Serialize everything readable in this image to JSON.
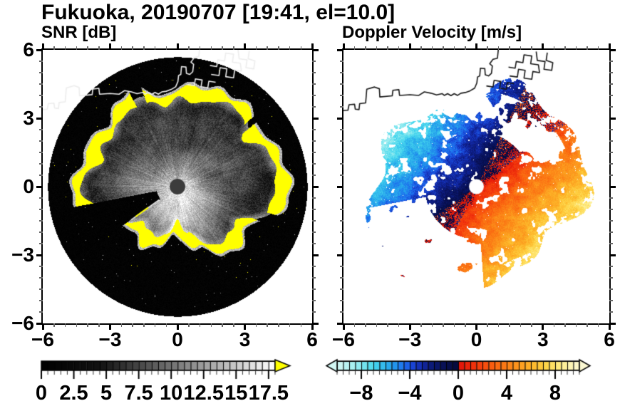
{
  "figure": {
    "title": "Fukuoka, 20190707 [19:41, el=10.0]",
    "station": "Fukuoka",
    "date": "20190707",
    "time": "19:41",
    "elevation": "10.0",
    "background": "#ffffff"
  },
  "panels": [
    {
      "id": "snr",
      "title": "SNR [dB]",
      "y_tick_labels": [
        "6",
        "3",
        "0",
        "−3",
        "−6"
      ],
      "x_tick_labels": [
        "−6",
        "−3",
        "0",
        "3",
        "6"
      ],
      "colorbar_labels": [
        "0",
        "2.5",
        "5",
        "7.5",
        "10",
        "12.5",
        "15",
        "17.5"
      ]
    },
    {
      "id": "velocity",
      "title": "Doppler Velocity [m/s]",
      "x_tick_labels": [
        "−6",
        "−3",
        "0",
        "3",
        "6"
      ],
      "colorbar_labels": [
        "−8",
        "−4",
        "0",
        "4",
        "8"
      ]
    }
  ],
  "chart_data": [
    {
      "type": "heatmap",
      "panel": "left",
      "title": "SNR [dB]",
      "x_range": [
        -6,
        6
      ],
      "y_range": [
        -6,
        6
      ],
      "x_major_ticks": [
        -6,
        -3,
        0,
        3,
        6
      ],
      "y_major_ticks": [
        6,
        3,
        0,
        -3,
        -6
      ],
      "minor_tick_step": 0.5,
      "grid": false,
      "colorbar": {
        "orientation": "horizontal",
        "range": [
          0,
          18
        ],
        "segment_step": 0.5,
        "major_ticks": [
          0,
          2.5,
          5,
          7.5,
          10,
          12.5,
          15,
          17.5
        ],
        "minor_tick_step": 0.5,
        "colormap": {
          "type": "grayscale",
          "black_below": 4.5,
          "white_at": 18
        },
        "over_range_color": "#ffff00",
        "over_range_arrow": "right"
      },
      "features": {
        "scan_disk_radius": 5.78,
        "radar_center_dot": {
          "x": 0,
          "y": 0,
          "radius": 0.22,
          "color": "#3c3c3c"
        },
        "blocked_wedge_rad": [
          -2.95,
          -2.53
        ],
        "blocked_wedge_toward": "southwest",
        "echo_boundary_radius_by_dir": {
          "E": 4.55,
          "NE": 4.35,
          "N": 4.2,
          "NW": 4.05,
          "W": 4.25,
          "SW": 2.6,
          "S": 2.15,
          "SE": 3.3
        },
        "yellow_ring": "over-range SNR (>18 dB) blobs along the echo boundary",
        "description": "PPI radar scan: bright white high-SNR core with radial streaks around the radar, gray speckled echo region, irregular yellow over-range ring at the echo boundary, near-black low-SNR ring out to the scan edge, black blocked wedge toward the southwest, dark dot at the radar site, white coastline overlay along the top"
      },
      "coastline_overlay_color": "#ededed"
    },
    {
      "type": "heatmap",
      "panel": "right",
      "title": "Doppler Velocity [m/s]",
      "x_range": [
        -6,
        6
      ],
      "y_range": [
        -6,
        6
      ],
      "x_major_ticks": [
        -6,
        -3,
        0,
        3,
        6
      ],
      "y_major_ticks": [
        6,
        3,
        0,
        -3,
        -6
      ],
      "minor_tick_step": 0.5,
      "grid": false,
      "colorbar": {
        "orientation": "horizontal",
        "range": [
          -10,
          10
        ],
        "segment_step": 0.5,
        "major_ticks": [
          -8,
          -4,
          0,
          4,
          8
        ],
        "minor_tick_step": 0.5,
        "under_range_arrow": "left",
        "over_range_arrow": "right"
      },
      "colormap_stops": [
        [
          -10,
          [
            210,
            248,
            244
          ]
        ],
        [
          -8.5,
          [
            160,
            238,
            240
          ]
        ],
        [
          -7,
          [
            70,
            215,
            238
          ]
        ],
        [
          -5.5,
          [
            35,
            160,
            235
          ]
        ],
        [
          -4.5,
          [
            30,
            110,
            238
          ]
        ],
        [
          -3.8,
          [
            25,
            70,
            215
          ]
        ],
        [
          -3,
          [
            18,
            40,
            165
          ]
        ],
        [
          -2.2,
          [
            12,
            26,
            118
          ]
        ],
        [
          -1.2,
          [
            8,
            16,
            84
          ]
        ],
        [
          -0.02,
          [
            5,
            10,
            58
          ]
        ],
        [
          0.02,
          [
            225,
            18,
            10
          ]
        ],
        [
          1.5,
          [
            243,
            55,
            12
          ]
        ],
        [
          3,
          [
            250,
            100,
            16
          ]
        ],
        [
          4.5,
          [
            252,
            140,
            25
          ]
        ],
        [
          6,
          [
            253,
            180,
            40
          ]
        ],
        [
          7.2,
          [
            254,
            212,
            70
          ]
        ],
        [
          8.2,
          [
            254,
            232,
            120
          ]
        ],
        [
          9,
          [
            253,
            242,
            168
          ]
        ],
        [
          10,
          [
            251,
            248,
            210
          ]
        ]
      ],
      "wind_dipole": {
        "positive_toward_math_angle_rad": -0.7,
        "max_speed": 9.4,
        "near_center_speed": 1.1,
        "description": "negative velocities (navy to pale cyan) over the northwest half, positive (red to pale yellow) over the southeast half, zero isodop running SW-NE, dark navy adjacent to the zero line, patchy white no-data gaps in a northern band and the lower-left quadrant, white dot at the radar site, black coastline overlay"
      },
      "no_data_color": "#ffffff",
      "data_radius": 4.6,
      "radar_center_dot": {
        "x": 0,
        "y": 0,
        "radius": 0.24,
        "color": "#ffffff"
      },
      "coastline_overlay_color": "#161616",
      "coastline_paths": [
        [
          [
            -6.15,
            3.42
          ],
          [
            -5.8,
            3.45
          ],
          [
            -5.75,
            3.7
          ],
          [
            -5.5,
            3.72
          ],
          [
            -5.47,
            3.5
          ],
          [
            -5.3,
            3.48
          ],
          [
            -5.27,
            3.75
          ],
          [
            -5.0,
            3.78
          ],
          [
            -4.95,
            4.4
          ],
          [
            -4.6,
            4.5
          ],
          [
            -4.38,
            4.42
          ],
          [
            -4.36,
            4.05
          ],
          [
            -3.8,
            4.1
          ],
          [
            -3.77,
            4.35
          ],
          [
            -3.5,
            4.38
          ],
          [
            -3.47,
            4.12
          ],
          [
            -3.0,
            4.15
          ],
          [
            -2.6,
            4.12
          ],
          [
            -2.35,
            4.28
          ],
          [
            -2.05,
            4.22
          ],
          [
            -1.8,
            4.14
          ],
          [
            -1.55,
            4.2
          ],
          [
            -1.45,
            4.12
          ],
          [
            -1.3,
            4.2
          ],
          [
            -1.15,
            4.11
          ],
          [
            -1.0,
            4.2
          ],
          [
            -0.85,
            4.12
          ],
          [
            -0.7,
            4.22
          ],
          [
            -0.5,
            4.25
          ],
          [
            -0.28,
            4.33
          ],
          [
            -0.08,
            4.45
          ],
          [
            0.02,
            4.68
          ],
          [
            0.05,
            4.95
          ],
          [
            0.15,
            5.0
          ],
          [
            0.18,
            5.35
          ],
          [
            0.38,
            5.33
          ],
          [
            0.4,
            5.05
          ],
          [
            0.55,
            5.0
          ],
          [
            0.68,
            5.12
          ],
          [
            0.72,
            5.45
          ],
          [
            0.6,
            5.55
          ],
          [
            0.75,
            5.75
          ],
          [
            0.95,
            5.8
          ],
          [
            1.0,
            6.3
          ]
        ],
        [
          [
            0.45,
            4.55
          ],
          [
            0.75,
            4.5
          ],
          [
            0.8,
            4.8
          ],
          [
            1.1,
            4.75
          ],
          [
            1.05,
            4.45
          ],
          [
            1.35,
            4.4
          ],
          [
            1.4,
            4.7
          ],
          [
            1.7,
            4.65
          ]
        ],
        [
          [
            1.5,
            5.0
          ],
          [
            1.85,
            4.95
          ],
          [
            1.9,
            5.3
          ],
          [
            2.2,
            5.25
          ],
          [
            2.15,
            4.9
          ],
          [
            2.5,
            4.85
          ],
          [
            2.55,
            5.2
          ],
          [
            2.85,
            5.15
          ],
          [
            2.8,
            5.5
          ],
          [
            2.45,
            5.55
          ],
          [
            2.5,
            5.9
          ],
          [
            2.15,
            5.95
          ],
          [
            2.1,
            5.6
          ],
          [
            1.8,
            5.65
          ],
          [
            1.75,
            5.35
          ],
          [
            1.45,
            5.4
          ]
        ],
        [
          [
            2.7,
            6.1
          ],
          [
            2.75,
            5.7
          ],
          [
            3.1,
            5.65
          ],
          [
            3.05,
            5.3
          ],
          [
            3.4,
            5.25
          ],
          [
            3.45,
            5.6
          ],
          [
            3.15,
            5.7
          ],
          [
            3.2,
            6.05
          ]
        ]
      ]
    }
  ]
}
